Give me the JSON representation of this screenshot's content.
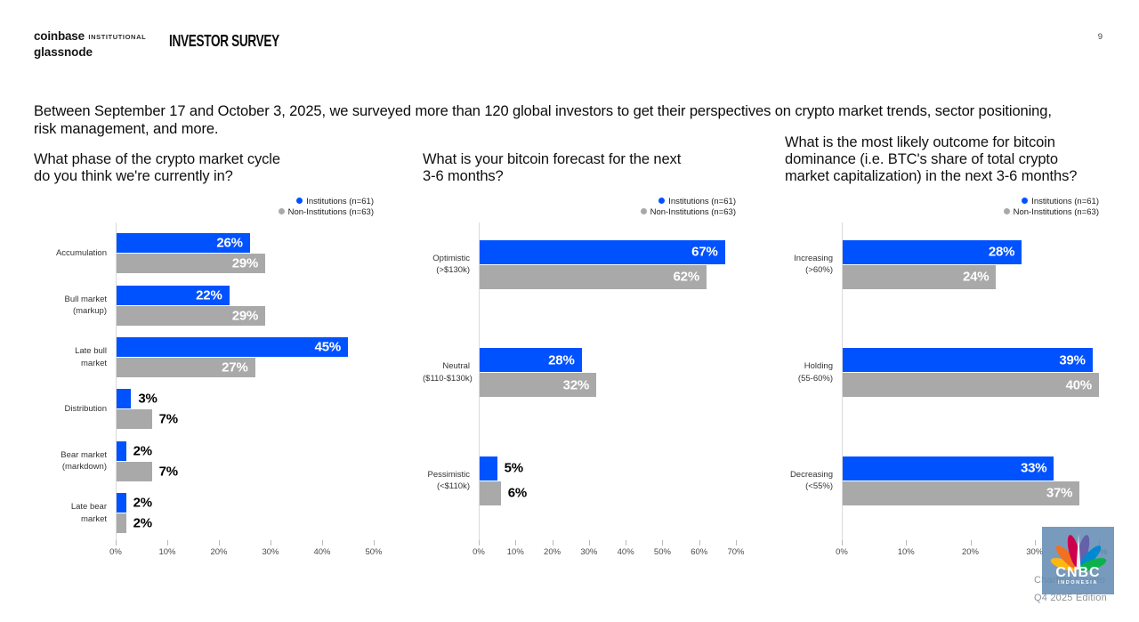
{
  "header": {
    "logo_primary": "coinbase",
    "logo_primary_suffix": "INSTITUTIONAL",
    "logo_secondary": "glassnode",
    "report_title": "INVESTOR SURVEY",
    "page_number": "9"
  },
  "intro": "Between September 17 and October 3, 2025, we surveyed more than 120 global investors to get their perspectives on crypto market trends, sector positioning, risk management, and more.",
  "legend": {
    "items": [
      {
        "label": "Institutions (n=61)",
        "color": "#0052ff"
      },
      {
        "label": "Non-Institutions (n=63)",
        "color": "#a9a9a9"
      }
    ]
  },
  "colors": {
    "institutions": "#0052ff",
    "non_institutions": "#a9a9a9"
  },
  "chart_data": [
    {
      "type": "bar",
      "orientation": "horizontal",
      "title": "What phase of the crypto market cycle\ndo you think we're currently in?",
      "categories": [
        "Accumulation",
        "Bull market\n(markup)",
        "Late bull\nmarket",
        "Distribution",
        "Bear market\n(markdown)",
        "Late bear\nmarket"
      ],
      "series": [
        {
          "name": "Institutions (n=61)",
          "color": "#0052ff",
          "values": [
            26,
            22,
            45,
            3,
            2,
            2
          ]
        },
        {
          "name": "Non-Institutions (n=63)",
          "color": "#a9a9a9",
          "values": [
            29,
            29,
            27,
            7,
            7,
            2
          ]
        }
      ],
      "value_suffix": "%",
      "xlim": [
        0,
        50
      ],
      "xticks": [
        "0%",
        "10%",
        "20%",
        "30%",
        "40%",
        "50%"
      ],
      "grid": false,
      "legend_position": "top-right"
    },
    {
      "type": "bar",
      "orientation": "horizontal",
      "title": "What is your bitcoin forecast for the next\n3-6 months?",
      "categories": [
        "Optimistic\n(>$130k)",
        "Neutral\n($110-$130k)",
        "Pessimistic\n(<$110k)"
      ],
      "series": [
        {
          "name": "Institutions (n=61)",
          "color": "#0052ff",
          "values": [
            67,
            28,
            5
          ]
        },
        {
          "name": "Non-Institutions (n=63)",
          "color": "#a9a9a9",
          "values": [
            62,
            32,
            6
          ]
        }
      ],
      "value_suffix": "%",
      "xlim": [
        0,
        70
      ],
      "xticks": [
        "0%",
        "10%",
        "20%",
        "30%",
        "40%",
        "50%",
        "60%",
        "70%"
      ],
      "grid": false,
      "legend_position": "top-right"
    },
    {
      "type": "bar",
      "orientation": "horizontal",
      "title": "What is the most likely outcome for bitcoin\ndominance (i.e. BTC's share of total crypto\nmarket capitalization) in the next 3-6 months?",
      "categories": [
        "Increasing\n(>60%)",
        "Holding\n(55-60%)",
        "Decreasing\n(<55%)"
      ],
      "series": [
        {
          "name": "Institutions (n=61)",
          "color": "#0052ff",
          "values": [
            28,
            39,
            33
          ]
        },
        {
          "name": "Non-Institutions (n=63)",
          "color": "#a9a9a9",
          "values": [
            24,
            40,
            37
          ]
        }
      ],
      "value_suffix": "%",
      "xlim": [
        0,
        40
      ],
      "xticks": [
        "0%",
        "10%",
        "20%",
        "30%",
        "40%"
      ],
      "grid": false,
      "legend_position": "top-right"
    }
  ],
  "watermark": {
    "brand": "CNBC",
    "brand_sub": "INDONESIA",
    "caption_line1": "Charting Crypto",
    "caption_line2": "Q4 2025 Edition"
  }
}
